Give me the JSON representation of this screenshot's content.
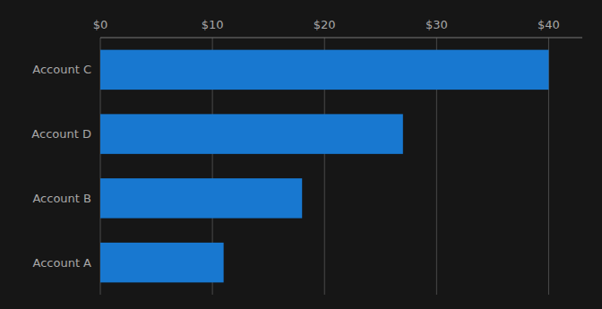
{
  "chart_data": {
    "type": "bar",
    "orientation": "horizontal",
    "categories": [
      "Account A",
      "Account B",
      "Account D",
      "Account C"
    ],
    "values": [
      11,
      18,
      27,
      40
    ],
    "color": "#1878d0",
    "xlim": [
      0,
      43
    ],
    "xticks": [
      {
        "value": 0,
        "label": "$0"
      },
      {
        "value": 10,
        "label": "$10"
      },
      {
        "value": 20,
        "label": "$20"
      },
      {
        "value": 30,
        "label": "$30"
      },
      {
        "value": 40,
        "label": "$40"
      }
    ],
    "grid": true
  }
}
